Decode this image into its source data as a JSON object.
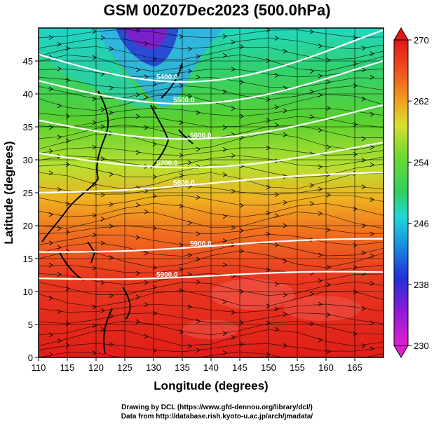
{
  "title": "GSM 00Z07Dec2023 (500.0hPa)",
  "x_axis": {
    "label": "Longitude (degrees)",
    "ticks": [
      "110",
      "115",
      "120",
      "125",
      "130",
      "135",
      "140",
      "145",
      "150",
      "155",
      "160",
      "165"
    ],
    "range": [
      110,
      170
    ]
  },
  "y_axis": {
    "label": "Latitude (degrees)",
    "ticks": [
      "0",
      "5",
      "10",
      "15",
      "20",
      "25",
      "30",
      "35",
      "40",
      "45"
    ],
    "range": [
      0,
      50
    ]
  },
  "colorbar": {
    "ticks": [
      "230",
      "238",
      "246",
      "254",
      "262",
      "270"
    ],
    "range": [
      230,
      270
    ],
    "colors": [
      "#e020d0",
      "#8a1ad8",
      "#2030d8",
      "#1aa0e8",
      "#20e0d0",
      "#30d060",
      "#60d030",
      "#c8e030",
      "#f0b020",
      "#f07020",
      "#e83020",
      "#e01818"
    ]
  },
  "contours": [
    {
      "label": "5400.0",
      "lat_at_west": 46
    },
    {
      "label": "5500.0",
      "lat_at_west": 42
    },
    {
      "label": "5600.0",
      "lat_at_west": 36
    },
    {
      "label": "5700.0",
      "lat_at_west": 31
    },
    {
      "label": "5800.0",
      "lat_at_west": 25
    },
    {
      "label": "5900.0",
      "lat_at_west": 16
    },
    {
      "label": "5900.0",
      "lat_at_west": 12
    }
  ],
  "credits": {
    "line1": "Drawing by DCL (https://www.gfd-dennou.org/library/dcl/)",
    "line2": "Data from http://database.rish.kyoto-u.ac.jp/arch/jmadata/"
  }
}
